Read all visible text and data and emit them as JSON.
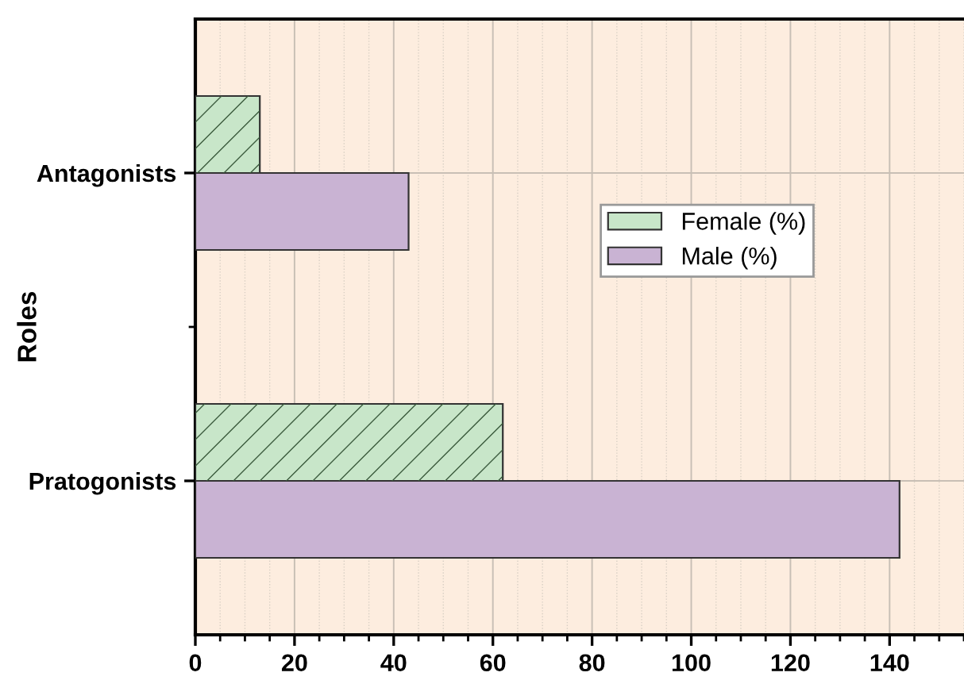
{
  "chart_data": {
    "type": "bar",
    "orientation": "horizontal",
    "ylabel": "Roles",
    "categories": [
      "Antagonists",
      "Pratogonists"
    ],
    "series": [
      {
        "name": "Female (%)",
        "color": "#c8e6c9",
        "values": [
          13,
          62
        ]
      },
      {
        "name": "Male (%)",
        "color": "#c9b3d3",
        "values": [
          43,
          142
        ]
      }
    ],
    "xlim": [
      0,
      155
    ],
    "xticks": [
      0,
      20,
      40,
      60,
      80,
      100,
      120,
      140
    ],
    "grid": true,
    "legend": "right"
  }
}
